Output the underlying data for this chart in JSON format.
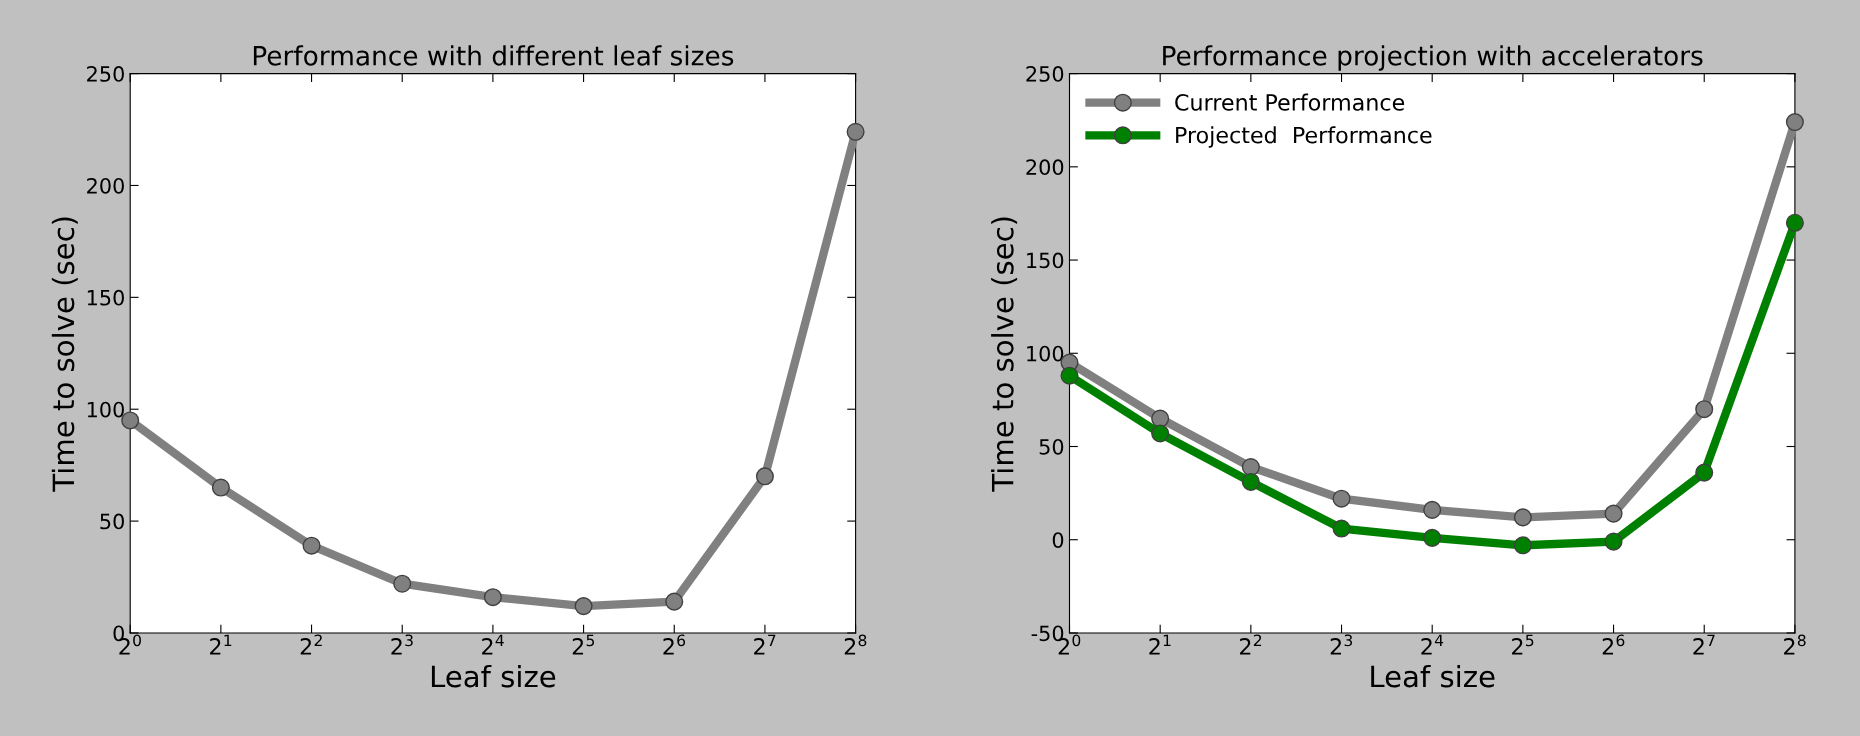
{
  "chart_data": [
    {
      "type": "line",
      "title": "Performance with different leaf sizes",
      "xlabel": "Leaf size",
      "ylabel": "Time to solve (sec)",
      "categories": [
        "2$^{0}$",
        "2$^{1}$",
        "2$^{2}$",
        "2$^{3}$",
        "2$^{4}$",
        "2$^{5}$",
        "2$^{6}$",
        "2$^{7}$",
        "2$^{8}$"
      ],
      "series": [
        {
          "color": "#808080",
          "values": [
            95,
            65,
            39,
            22,
            16,
            12,
            14,
            70,
            224
          ]
        }
      ],
      "ylim": [
        0,
        250
      ],
      "yticks": [
        0,
        50,
        100,
        150,
        200,
        250
      ],
      "marker": "circle",
      "grid": false,
      "legend": false
    },
    {
      "type": "line",
      "title": "Performance projection with accelerators",
      "xlabel": "Leaf size",
      "ylabel": "Time to solve (sec)",
      "categories": [
        "2$^{0}$",
        "2$^{1}$",
        "2$^{2}$",
        "2$^{3}$",
        "2$^{4}$",
        "2$^{5}$",
        "2$^{6}$",
        "2$^{7}$",
        "2$^{8}$"
      ],
      "series": [
        {
          "name": "Current Performance",
          "color": "#808080",
          "values": [
            95,
            65,
            39,
            22,
            16,
            12,
            14,
            70,
            224
          ]
        },
        {
          "name": "Projected  Performance",
          "color": "#008000",
          "values": [
            88,
            57,
            31,
            6,
            1,
            -3,
            -1,
            36,
            170
          ]
        }
      ],
      "ylim": [
        -50,
        250
      ],
      "yticks": [
        -50,
        0,
        50,
        100,
        150,
        200,
        250
      ],
      "marker": "circle",
      "grid": false,
      "legend": "top left"
    }
  ]
}
